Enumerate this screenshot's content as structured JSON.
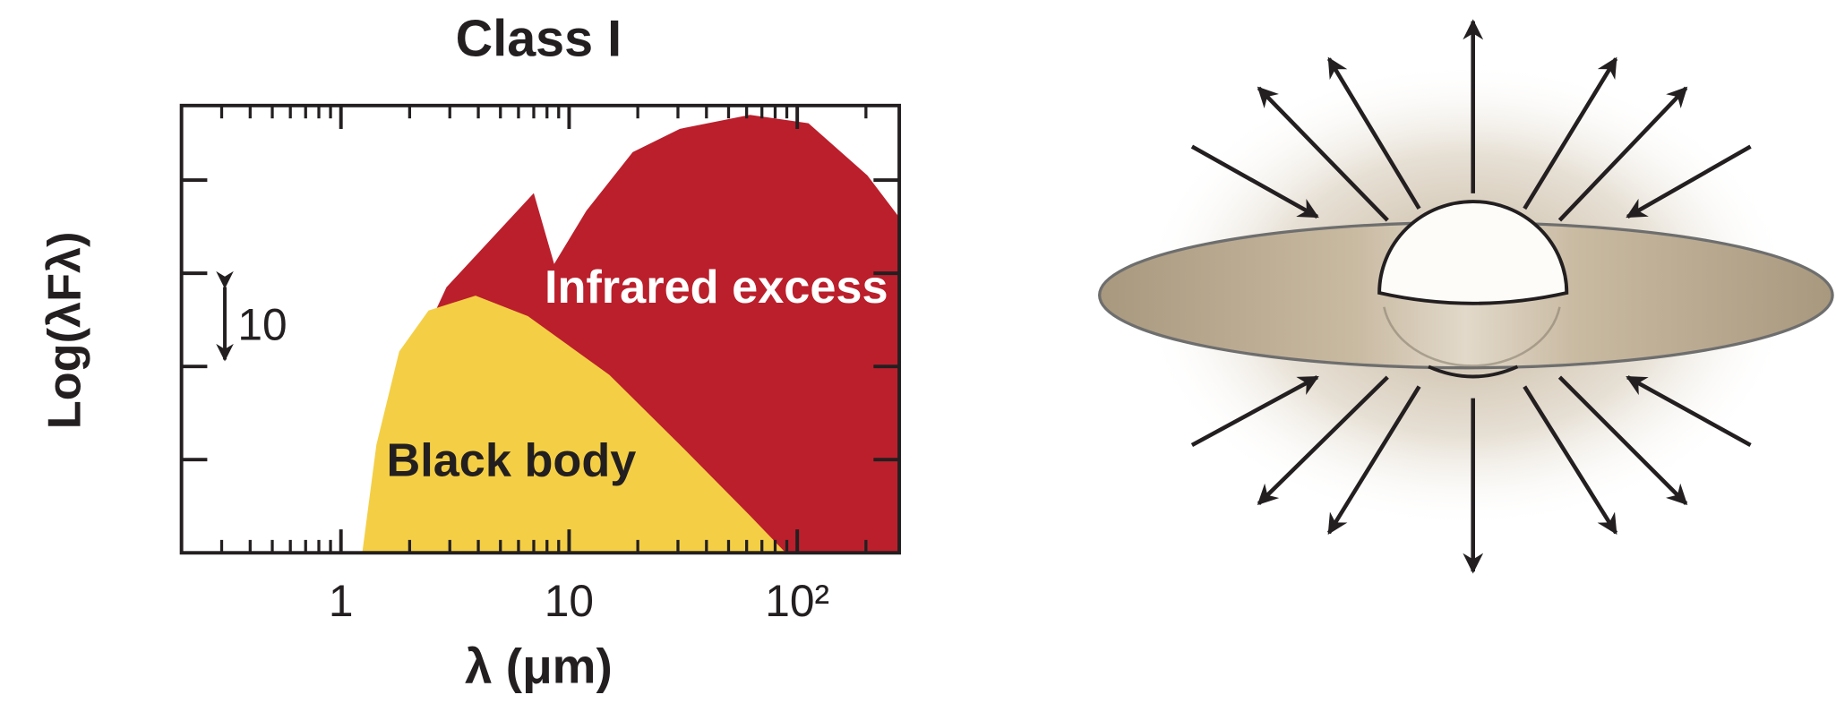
{
  "chart_data": {
    "type": "area",
    "title": "Class I",
    "x_label": "λ (μm)",
    "y_label": "Log(λFλ)",
    "x_scale": "log",
    "xlim": [
      0.2,
      280
    ],
    "xticks": [
      1,
      10,
      {
        "value": 100,
        "label": "10²"
      }
    ],
    "xminorticks": [
      0.3,
      0.4,
      0.5,
      0.6,
      0.7,
      0.8,
      0.9,
      2,
      3,
      4,
      5,
      6,
      7,
      8,
      9,
      20,
      30,
      40,
      50,
      60,
      70,
      80,
      90,
      200
    ],
    "ylim": [
      0,
      4.8
    ],
    "yticks": [
      1,
      2,
      3,
      4
    ],
    "scale_label": "10",
    "series": [
      {
        "name": "Infrared excess",
        "color": "#bb1f2c",
        "x": [
          2.6,
          2.9,
          7,
          8.6,
          11.9,
          19,
          30.6,
          62,
          112,
          203,
          280
        ],
        "values": [
          2.6,
          2.85,
          3.86,
          3.1,
          3.67,
          4.3,
          4.55,
          4.7,
          4.61,
          4.05,
          3.6
        ]
      },
      {
        "name": "Black body",
        "color": "#f4cf45",
        "x": [
          1.24,
          1.43,
          1.8,
          2.42,
          3.89,
          6.6,
          15,
          30.6,
          62,
          89
        ],
        "values": [
          0,
          1.16,
          2.16,
          2.6,
          2.76,
          2.54,
          1.91,
          1.16,
          0.4,
          0
        ]
      }
    ]
  }
}
